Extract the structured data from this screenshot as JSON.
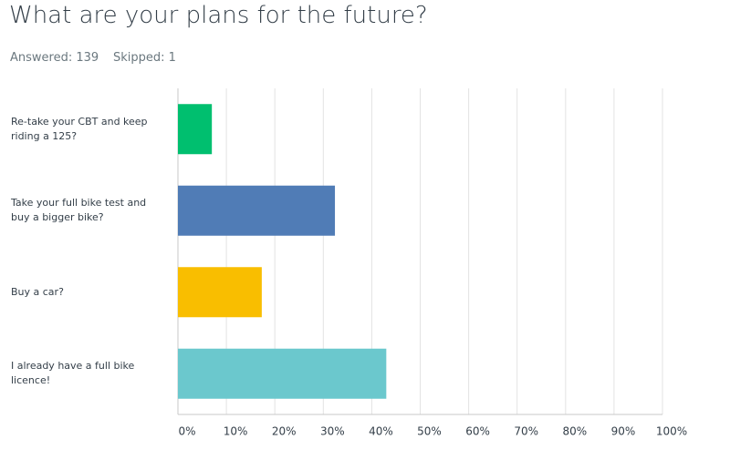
{
  "chart_data": {
    "type": "barh",
    "title": "What are your plans for the future?",
    "answered": "Answered: 139",
    "skipped": "Skipped: 1",
    "categories": [
      "Re-take your CBT and keep riding a 125?",
      "Take your full bike test and buy a bigger bike?",
      "Buy a car?",
      "I already have a full bike licence!"
    ],
    "values": [
      7,
      32.4,
      17.3,
      43
    ],
    "colors": [
      "#00bf6f",
      "#507cb6",
      "#f9be00",
      "#6bc8cd"
    ],
    "xlim": [
      0,
      100
    ],
    "xticks": [
      {
        "value": 0,
        "label": "0%"
      },
      {
        "value": 10,
        "label": "10%"
      },
      {
        "value": 20,
        "label": "20%"
      },
      {
        "value": 30,
        "label": "30%"
      },
      {
        "value": 40,
        "label": "40%"
      },
      {
        "value": 50,
        "label": "50%"
      },
      {
        "value": 60,
        "label": "60%"
      },
      {
        "value": 70,
        "label": "70%"
      },
      {
        "value": 80,
        "label": "80%"
      },
      {
        "value": 90,
        "label": "90%"
      },
      {
        "value": 100,
        "label": "100%"
      }
    ],
    "grid": true
  }
}
